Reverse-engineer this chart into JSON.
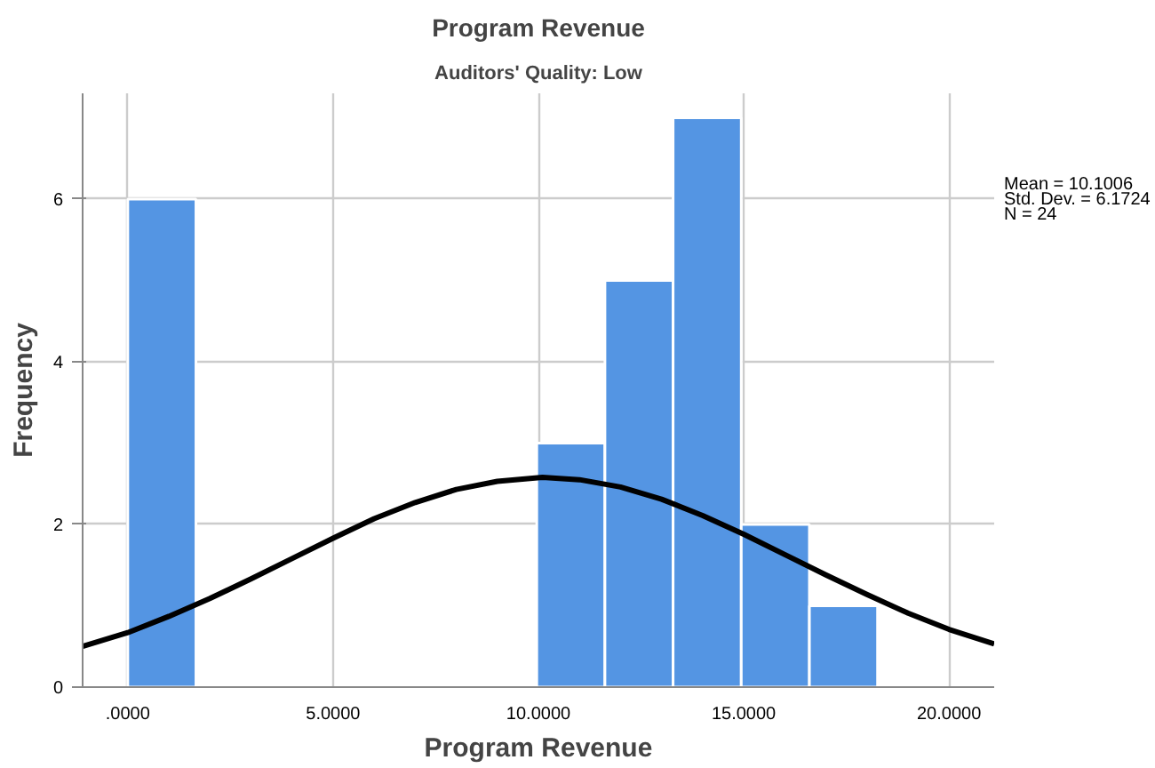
{
  "chart_data": {
    "type": "histogram",
    "title": "Program Revenue",
    "subtitle": "Auditors' Quality: Low",
    "xlabel": "Program Revenue",
    "ylabel": "Frequency",
    "annotations": [
      "Mean = 10.1006",
      "Std. Dev. = 6.1724",
      "N = 24"
    ],
    "xlim": [
      -1.1,
      21.1
    ],
    "ylim": [
      0,
      7.3
    ],
    "xticks": [
      {
        "value": 0,
        "label": ".0000"
      },
      {
        "value": 5,
        "label": "5.0000"
      },
      {
        "value": 10,
        "label": "10.0000"
      },
      {
        "value": 15,
        "label": "15.0000"
      },
      {
        "value": 20,
        "label": "20.0000"
      }
    ],
    "yticks": [
      0,
      2,
      4,
      6
    ],
    "grid": true,
    "series": [
      {
        "color": "#5495e3",
        "bins": [
          0,
          1.66,
          3.32,
          4.98,
          6.64,
          8.3,
          9.96,
          11.62,
          13.28,
          14.94,
          16.6,
          18.26
        ],
        "values": [
          6,
          0,
          0,
          0,
          0,
          0,
          3,
          5,
          7,
          2,
          1
        ]
      },
      {
        "type": "line",
        "color": "#000000",
        "x": [
          -1.1,
          0,
          1,
          2,
          3,
          4,
          5,
          6,
          7,
          8,
          9,
          10.1,
          11,
          12,
          13,
          14,
          15,
          16,
          17,
          18,
          19,
          20,
          21.1
        ],
        "values": [
          0.5,
          0.67,
          0.87,
          1.09,
          1.33,
          1.58,
          1.83,
          2.07,
          2.27,
          2.43,
          2.53,
          2.58,
          2.55,
          2.46,
          2.31,
          2.11,
          1.88,
          1.63,
          1.38,
          1.14,
          0.91,
          0.71,
          0.53
        ]
      }
    ]
  }
}
